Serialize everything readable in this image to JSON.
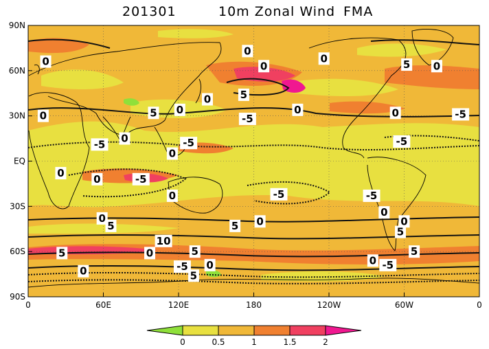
{
  "title": {
    "date": "201301",
    "variable": "10m Zonal Wind",
    "season": "FMA"
  },
  "axes": {
    "x_ticks": [
      {
        "lon": 0,
        "label": "0"
      },
      {
        "lon": 60,
        "label": "60E"
      },
      {
        "lon": 120,
        "label": "120E"
      },
      {
        "lon": 180,
        "label": "180"
      },
      {
        "lon": 240,
        "label": "120W"
      },
      {
        "lon": 300,
        "label": "60W"
      },
      {
        "lon": 360,
        "label": "0"
      }
    ],
    "y_ticks": [
      {
        "lat": 90,
        "label": "90N"
      },
      {
        "lat": 60,
        "label": "60N"
      },
      {
        "lat": 30,
        "label": "30N"
      },
      {
        "lat": 0,
        "label": "EQ"
      },
      {
        "lat": -30,
        "label": "30S"
      },
      {
        "lat": -60,
        "label": "60S"
      },
      {
        "lat": -90,
        "label": "90S"
      }
    ],
    "lon_range": [
      0,
      360
    ],
    "lat_range": [
      -90,
      90
    ],
    "grid": "dotted"
  },
  "colorbar": {
    "labels": [
      "0",
      "0.5",
      "1",
      "1.5",
      "2"
    ],
    "levels": [
      0,
      0.5,
      1,
      1.5,
      2
    ],
    "colors": [
      "#8fe03a",
      "#e8e040",
      "#f0b838",
      "#f08030",
      "#f04060",
      "#f01890"
    ]
  },
  "contour_labels": [
    {
      "lon": 14,
      "lat": 66,
      "text": "0"
    },
    {
      "lon": 143,
      "lat": 41,
      "text": "0"
    },
    {
      "lon": 100,
      "lat": 32,
      "text": "5"
    },
    {
      "lon": 121,
      "lat": 34,
      "text": "0"
    },
    {
      "lon": 172,
      "lat": 44,
      "text": "5"
    },
    {
      "lon": 175,
      "lat": 73,
      "text": "0"
    },
    {
      "lon": 188,
      "lat": 63,
      "text": "0"
    },
    {
      "lon": 215,
      "lat": 34,
      "text": "0"
    },
    {
      "lon": 175,
      "lat": 28,
      "text": "-5"
    },
    {
      "lon": 236,
      "lat": 68,
      "text": "0"
    },
    {
      "lon": 302,
      "lat": 64,
      "text": "5"
    },
    {
      "lon": 326,
      "lat": 63,
      "text": "0"
    },
    {
      "lon": 293,
      "lat": 32,
      "text": "0"
    },
    {
      "lon": 345,
      "lat": 31,
      "text": "-5"
    },
    {
      "lon": 298,
      "lat": 13,
      "text": "-5"
    },
    {
      "lon": 12,
      "lat": 30,
      "text": "0"
    },
    {
      "lon": 57,
      "lat": 11,
      "text": "-5"
    },
    {
      "lon": 77,
      "lat": 15,
      "text": "0"
    },
    {
      "lon": 128,
      "lat": 12,
      "text": "-5"
    },
    {
      "lon": 115,
      "lat": 5,
      "text": "0"
    },
    {
      "lon": 26,
      "lat": -8,
      "text": "0"
    },
    {
      "lon": 55,
      "lat": -12,
      "text": "0"
    },
    {
      "lon": 90,
      "lat": -12,
      "text": "-5"
    },
    {
      "lon": 115,
      "lat": -23,
      "text": "0"
    },
    {
      "lon": 200,
      "lat": -22,
      "text": "-5"
    },
    {
      "lon": 274,
      "lat": -23,
      "text": "-5"
    },
    {
      "lon": 284,
      "lat": -34,
      "text": "0"
    },
    {
      "lon": 59,
      "lat": -38,
      "text": "0"
    },
    {
      "lon": 66,
      "lat": -43,
      "text": "5"
    },
    {
      "lon": 185,
      "lat": -40,
      "text": "0"
    },
    {
      "lon": 165,
      "lat": -43,
      "text": "5"
    },
    {
      "lon": 300,
      "lat": -40,
      "text": "0"
    },
    {
      "lon": 297,
      "lat": -47,
      "text": "5"
    },
    {
      "lon": 108,
      "lat": -53,
      "text": "10"
    },
    {
      "lon": 27,
      "lat": -61,
      "text": "5"
    },
    {
      "lon": 97,
      "lat": -61,
      "text": "0"
    },
    {
      "lon": 133,
      "lat": -60,
      "text": "5"
    },
    {
      "lon": 123,
      "lat": -70,
      "text": "-5"
    },
    {
      "lon": 145,
      "lat": -69,
      "text": "0"
    },
    {
      "lon": 132,
      "lat": -76,
      "text": "5"
    },
    {
      "lon": 44,
      "lat": -73,
      "text": "0"
    },
    {
      "lon": 275,
      "lat": -66,
      "text": "0"
    },
    {
      "lon": 287,
      "lat": -69,
      "text": "-5"
    },
    {
      "lon": 308,
      "lat": -60,
      "text": "5"
    }
  ]
}
